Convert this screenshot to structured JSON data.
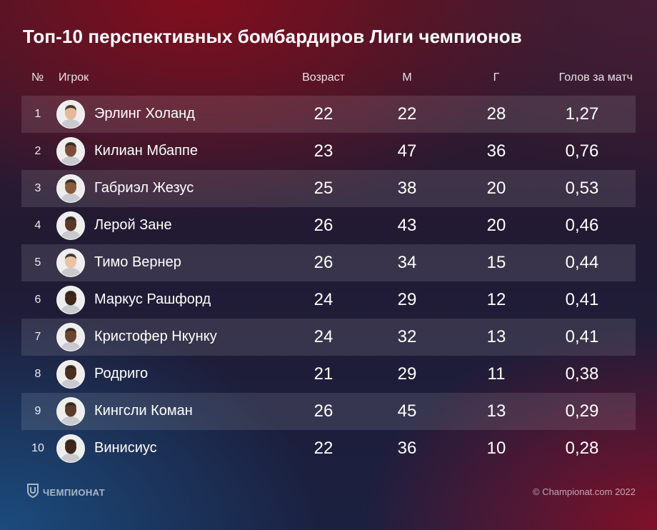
{
  "title": "Топ-10 перспективных бомбардиров Лиги чемпионов",
  "columns": {
    "number": "№",
    "player": "Игрок",
    "age": "Возраст",
    "matches": "М",
    "goals": "Г",
    "goals_per_match": "Голов за матч"
  },
  "rows": [
    {
      "num": "1",
      "name": "Эрлинг Холанд",
      "age": "22",
      "matches": "22",
      "goals": "28",
      "gpm": "1,27",
      "avatar_icon": "player-photo-icon"
    },
    {
      "num": "2",
      "name": "Килиан Мбаппе",
      "age": "23",
      "matches": "47",
      "goals": "36",
      "gpm": "0,76",
      "avatar_icon": "player-photo-icon"
    },
    {
      "num": "3",
      "name": "Габриэл Жезус",
      "age": "25",
      "matches": "38",
      "goals": "20",
      "gpm": "0,53",
      "avatar_icon": "player-photo-icon"
    },
    {
      "num": "4",
      "name": "Лерой Зане",
      "age": "26",
      "matches": "43",
      "goals": "20",
      "gpm": "0,46",
      "avatar_icon": "player-photo-icon"
    },
    {
      "num": "5",
      "name": "Тимо Вернер",
      "age": "26",
      "matches": "34",
      "goals": "15",
      "gpm": "0,44",
      "avatar_icon": "player-photo-icon"
    },
    {
      "num": "6",
      "name": "Маркус Рашфорд",
      "age": "24",
      "matches": "29",
      "goals": "12",
      "gpm": "0,41",
      "avatar_icon": "player-photo-icon"
    },
    {
      "num": "7",
      "name": "Кристофер Нкунку",
      "age": "24",
      "matches": "32",
      "goals": "13",
      "gpm": "0,41",
      "avatar_icon": "player-photo-icon"
    },
    {
      "num": "8",
      "name": "Родриго",
      "age": "21",
      "matches": "29",
      "goals": "11",
      "gpm": "0,38",
      "avatar_icon": "player-photo-icon"
    },
    {
      "num": "9",
      "name": "Кингсли Коман",
      "age": "26",
      "matches": "45",
      "goals": "13",
      "gpm": "0,29",
      "avatar_icon": "player-photo-icon"
    },
    {
      "num": "10",
      "name": "Винисиус",
      "age": "22",
      "matches": "36",
      "goals": "10",
      "gpm": "0,28",
      "avatar_icon": "player-photo-icon"
    }
  ],
  "footer": {
    "logo_text": "ЧЕМПИОНАТ",
    "logo_icon": "championat-logo-icon",
    "copyright": "© Championat.com 2022"
  },
  "colors": {
    "background_top": "#7a0e1e",
    "background_bottom_left": "#1b4e80",
    "row_stripe": "rgba(255,255,255,0.11)",
    "text": "#ffffff"
  }
}
